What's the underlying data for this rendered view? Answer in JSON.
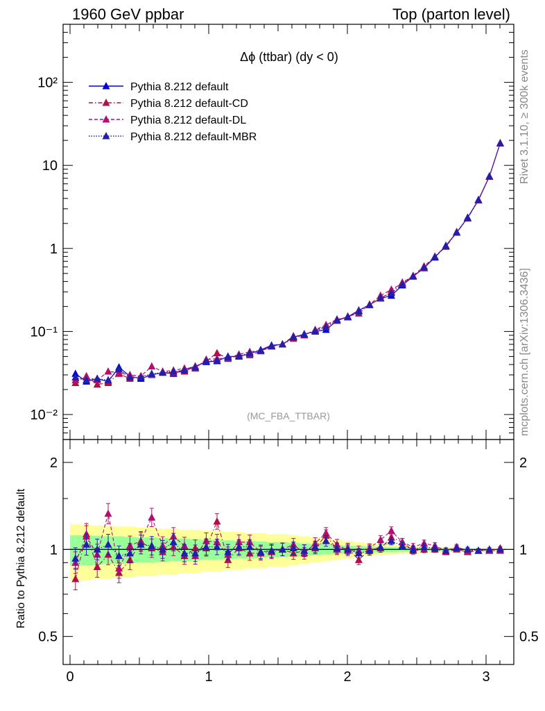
{
  "header": {
    "left": "1960 GeV ppbar",
    "right": "Top (parton level)"
  },
  "side_labels": {
    "rivet": "Rivet 3.1.10, ≥ 300k events",
    "mcplots": "mcplots.cern.ch [arXiv:1306.3436]"
  },
  "watermark": "(MC_FBA_TTBAR)",
  "colors": {
    "default": "#0000dd",
    "cd": "#b0104a",
    "dl": "#b01070",
    "mbr": "#2020aa",
    "band_yellow": "#ffff99",
    "band_green": "#99ff99"
  },
  "chart_data": [
    {
      "type": "line",
      "title": "Δϕ (ttbar) (dy < 0)",
      "yscale": "log",
      "xlim": [
        -0.05,
        3.2
      ],
      "ylim": [
        0.005,
        500
      ],
      "y_ticks": [
        "10⁻²",
        "10⁻¹",
        "1",
        "10",
        "10²"
      ],
      "legend_position": "top-left",
      "x": [
        0.039,
        0.118,
        0.196,
        0.275,
        0.353,
        0.432,
        0.511,
        0.589,
        0.668,
        0.746,
        0.825,
        0.903,
        0.982,
        1.06,
        1.139,
        1.218,
        1.296,
        1.375,
        1.453,
        1.532,
        1.611,
        1.689,
        1.768,
        1.846,
        1.925,
        2.003,
        2.082,
        2.16,
        2.239,
        2.317,
        2.396,
        2.474,
        2.553,
        2.631,
        2.71,
        2.788,
        2.867,
        2.945,
        3.024,
        3.102
      ],
      "series": [
        {
          "name": "Pythia 8.212 default",
          "style": "solid",
          "values": [
            0.031,
            0.025,
            0.027,
            0.025,
            0.037,
            0.029,
            0.027,
            0.03,
            0.032,
            0.031,
            0.035,
            0.038,
            0.043,
            0.044,
            0.05,
            0.05,
            0.054,
            0.06,
            0.068,
            0.07,
            0.085,
            0.093,
            0.1,
            0.105,
            0.135,
            0.15,
            0.18,
            0.21,
            0.25,
            0.27,
            0.36,
            0.46,
            0.58,
            0.78,
            1.08,
            1.55,
            2.35,
            3.85,
            7.4,
            18.5
          ]
        },
        {
          "name": "Pythia 8.212 default-CD",
          "style": "dashdot",
          "values": [
            0.024,
            0.029,
            0.023,
            0.024,
            0.031,
            0.027,
            0.029,
            0.03,
            0.032,
            0.032,
            0.033,
            0.038,
            0.044,
            0.055,
            0.047,
            0.051,
            0.052,
            0.058,
            0.066,
            0.07,
            0.082,
            0.092,
            0.102,
            0.118,
            0.135,
            0.152,
            0.165,
            0.21,
            0.25,
            0.3,
            0.39,
            0.46,
            0.58,
            0.79,
            1.05,
            1.55,
            2.3,
            3.8,
            7.3,
            18.6
          ]
        },
        {
          "name": "Pythia 8.212 default-DL",
          "style": "dashed",
          "values": [
            0.026,
            0.028,
            0.026,
            0.033,
            0.032,
            0.03,
            0.029,
            0.038,
            0.033,
            0.034,
            0.036,
            0.036,
            0.046,
            0.047,
            0.048,
            0.053,
            0.057,
            0.059,
            0.067,
            0.07,
            0.088,
            0.09,
            0.105,
            0.12,
            0.14,
            0.148,
            0.178,
            0.212,
            0.27,
            0.32,
            0.38,
            0.47,
            0.61,
            0.8,
            1.07,
            1.58,
            2.33,
            3.82,
            7.35,
            18.4
          ]
        },
        {
          "name": "Pythia 8.212 default-MBR",
          "style": "dotted",
          "values": [
            0.028,
            0.026,
            0.027,
            0.026,
            0.035,
            0.028,
            0.028,
            0.031,
            0.032,
            0.033,
            0.034,
            0.037,
            0.044,
            0.045,
            0.049,
            0.051,
            0.055,
            0.059,
            0.067,
            0.07,
            0.086,
            0.092,
            0.102,
            0.112,
            0.137,
            0.15,
            0.175,
            0.208,
            0.255,
            0.29,
            0.37,
            0.46,
            0.59,
            0.79,
            1.07,
            1.56,
            2.34,
            3.83,
            7.38,
            18.5
          ]
        }
      ]
    },
    {
      "type": "line",
      "ylabel": "Ratio to Pythia 8.212 default",
      "yscale": "log",
      "xlim": [
        -0.05,
        3.2
      ],
      "ylim": [
        0.4,
        2.4
      ],
      "x_ticks": [
        "0",
        "1",
        "2",
        "3"
      ],
      "y_ticks": [
        "0.5",
        "1",
        "2"
      ],
      "bands": {
        "yellow_halfwidth": [
          0.22,
          0.22,
          0.21,
          0.21,
          0.2,
          0.2,
          0.19,
          0.19,
          0.18,
          0.18,
          0.17,
          0.17,
          0.16,
          0.16,
          0.15,
          0.15,
          0.14,
          0.14,
          0.13,
          0.13,
          0.12,
          0.11,
          0.1,
          0.09,
          0.08,
          0.07,
          0.06,
          0.05,
          0.045,
          0.04,
          0.035,
          0.03,
          0.025,
          0.02,
          0.018,
          0.015,
          0.012,
          0.01,
          0.008,
          0.006
        ],
        "green_halfwidth": [
          0.12,
          0.12,
          0.115,
          0.11,
          0.11,
          0.105,
          0.1,
          0.1,
          0.095,
          0.09,
          0.09,
          0.085,
          0.08,
          0.08,
          0.075,
          0.07,
          0.07,
          0.065,
          0.06,
          0.06,
          0.055,
          0.05,
          0.045,
          0.04,
          0.035,
          0.03,
          0.028,
          0.025,
          0.022,
          0.02,
          0.018,
          0.015,
          0.012,
          0.01,
          0.009,
          0.008,
          0.006,
          0.005,
          0.004,
          0.003
        ]
      },
      "series": [
        {
          "name": "Pythia 8.212 default-CD",
          "style": "dashdot",
          "values": [
            0.79,
            1.13,
            0.87,
            0.96,
            0.83,
            0.92,
            1.06,
            1.01,
            0.98,
            1.02,
            0.95,
            1.01,
            1.01,
            1.25,
            0.92,
            1.01,
            0.97,
            0.97,
            0.98,
            1.0,
            0.97,
            0.99,
            1.01,
            1.12,
            1.0,
            1.01,
            0.92,
            1.0,
            1.01,
            1.1,
            1.06,
            0.99,
            1.0,
            1.0,
            0.98,
            1.0,
            0.98,
            0.99,
            0.99,
            1.01
          ]
        },
        {
          "name": "Pythia 8.212 default-DL",
          "style": "dashed",
          "values": [
            0.9,
            1.11,
            0.96,
            1.33,
            0.86,
            1.03,
            1.07,
            1.29,
            1.03,
            1.11,
            1.03,
            0.95,
            1.07,
            1.06,
            0.96,
            1.06,
            1.06,
            0.98,
            0.99,
            1.0,
            1.04,
            0.97,
            1.05,
            1.14,
            1.04,
            0.99,
            0.99,
            1.01,
            1.08,
            1.16,
            1.06,
            1.02,
            1.05,
            1.03,
            0.99,
            1.02,
            0.99,
            0.99,
            0.99,
            0.99
          ]
        },
        {
          "name": "Pythia 8.212 default-MBR",
          "style": "dotted",
          "values": [
            0.93,
            1.04,
            1.0,
            1.04,
            0.95,
            0.97,
            1.04,
            1.03,
            1.0,
            1.06,
            0.97,
            0.97,
            1.02,
            1.02,
            0.98,
            1.02,
            1.02,
            0.98,
            0.99,
            1.0,
            1.01,
            0.99,
            1.02,
            1.07,
            1.01,
            1.0,
            0.97,
            0.99,
            1.02,
            1.07,
            1.03,
            1.0,
            1.02,
            1.01,
            0.99,
            1.01,
            1.0,
            0.99,
            1.0,
            1.0
          ]
        }
      ]
    }
  ]
}
